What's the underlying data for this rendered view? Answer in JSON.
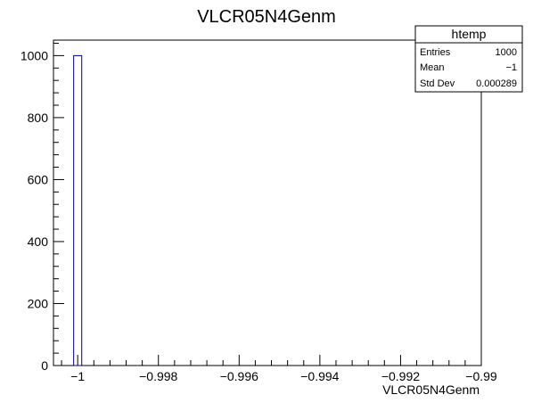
{
  "chart_data": {
    "type": "bar",
    "title": "VLCR05N4Genm",
    "xlabel": "VLCR05N4Genm",
    "ylabel": "",
    "xlim": [
      -1.0006,
      -0.99
    ],
    "ylim": [
      0,
      1050
    ],
    "x_ticks": [
      {
        "value": -1,
        "label": "−1"
      },
      {
        "value": -0.998,
        "label": "−0.998"
      },
      {
        "value": -0.996,
        "label": "−0.996"
      },
      {
        "value": -0.994,
        "label": "−0.994"
      },
      {
        "value": -0.992,
        "label": "−0.992"
      },
      {
        "value": -0.99,
        "label": "−0.99"
      }
    ],
    "y_ticks": [
      {
        "value": 0,
        "label": "0"
      },
      {
        "value": 200,
        "label": "200"
      },
      {
        "value": 400,
        "label": "400"
      },
      {
        "value": 600,
        "label": "600"
      },
      {
        "value": 800,
        "label": "800"
      },
      {
        "value": 1000,
        "label": "1000"
      }
    ],
    "bins": [
      {
        "low": -1.0001,
        "high": -0.9999,
        "count": 1000
      }
    ],
    "grid": false,
    "legend": "none",
    "bar_color": "#000099",
    "stats_box": {
      "title": "htemp",
      "placement": "top-right",
      "rows": [
        {
          "label": "Entries",
          "value": "1000"
        },
        {
          "label": "Mean",
          "value": "−1"
        },
        {
          "label": "Std Dev",
          "value": "0.000289"
        }
      ]
    }
  }
}
